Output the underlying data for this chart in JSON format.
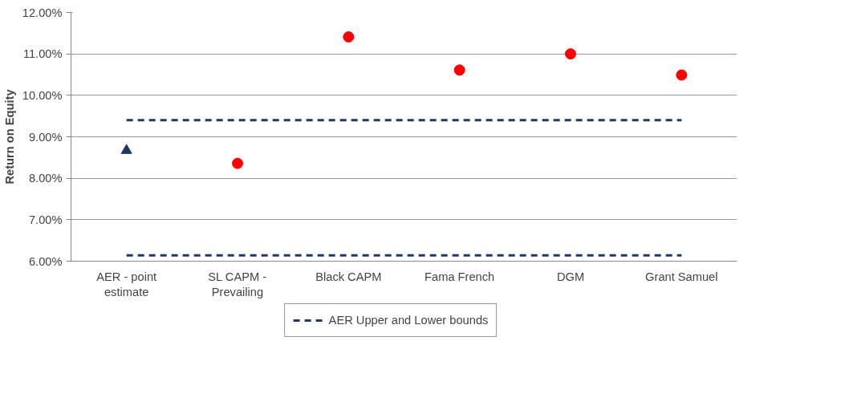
{
  "chart_data": {
    "type": "scatter",
    "ylabel": "Return on Equity",
    "categories": [
      "AER - point estimate",
      "SL CAPM - Prevailing",
      "Black CAPM",
      "Fama French",
      "DGM",
      "Grant Samuel"
    ],
    "series": [
      {
        "name": "AER Upper and Lower bounds",
        "type": "line",
        "line_style": "dashed",
        "marker": "none",
        "color": "#1f3864",
        "values": [
          9.4,
          9.4,
          9.4,
          9.4,
          9.4,
          9.4
        ]
      },
      {
        "type": "line",
        "line_style": "dashed",
        "marker": "none",
        "color": "#1f3864",
        "values": [
          6.14,
          6.14,
          6.14,
          6.14,
          6.14,
          6.14
        ]
      },
      {
        "marker": "triangle",
        "color": "#1f3864",
        "values": [
          8.67,
          null,
          null,
          null,
          null,
          null
        ]
      },
      {
        "marker": "circle",
        "color": "#ff0000",
        "values": [
          null,
          8.36,
          11.41,
          10.61,
          11.0,
          10.49
        ]
      }
    ],
    "ylim": [
      6,
      12
    ],
    "yticks": [
      {
        "value": 6,
        "label": "6.00%"
      },
      {
        "value": 7,
        "label": "7.00%"
      },
      {
        "value": 8,
        "label": "8.00%"
      },
      {
        "value": 9,
        "label": "9.00%"
      },
      {
        "value": 10,
        "label": "10.00%"
      },
      {
        "value": 11,
        "label": "11.00%"
      },
      {
        "value": 12,
        "label": "12.00%"
      }
    ],
    "grid": "y",
    "legend": "bottom"
  }
}
